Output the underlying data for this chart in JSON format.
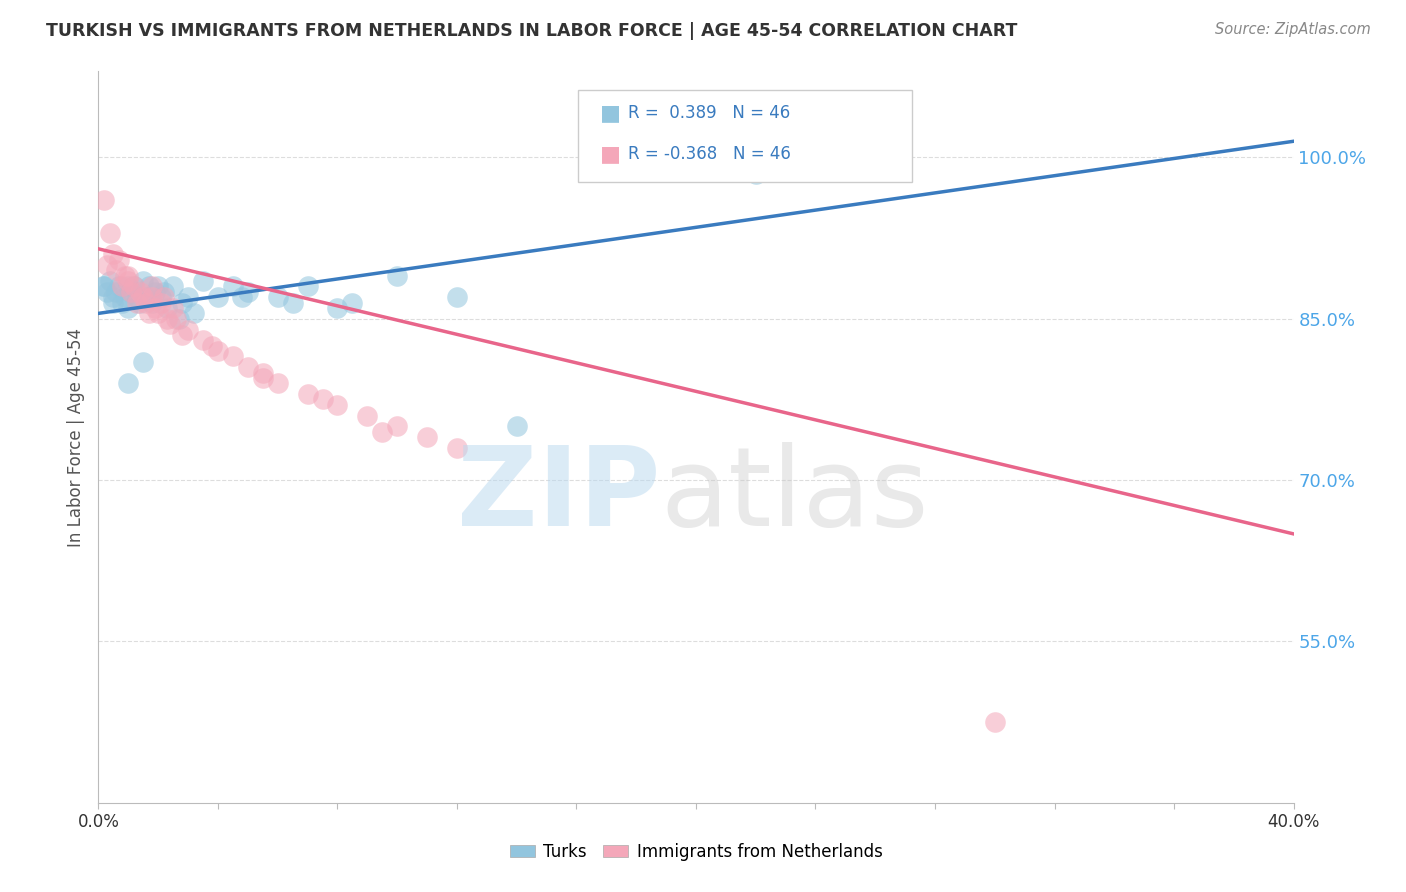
{
  "title": "TURKISH VS IMMIGRANTS FROM NETHERLANDS IN LABOR FORCE | AGE 45-54 CORRELATION CHART",
  "source": "Source: ZipAtlas.com",
  "ylabel": "In Labor Force | Age 45-54",
  "xlim": [
    0.0,
    40.0
  ],
  "ylim": [
    40.0,
    108.0
  ],
  "yticks": [
    55.0,
    70.0,
    85.0,
    100.0
  ],
  "ytick_labels": [
    "55.0%",
    "70.0%",
    "85.0%",
    "100.0%"
  ],
  "legend_r_blue": "0.389",
  "legend_r_pink": "-0.368",
  "legend_n": "46",
  "blue_color": "#92c5de",
  "pink_color": "#f4a7b9",
  "blue_line_color": "#3a7bbf",
  "pink_line_color": "#e8658a",
  "ytick_color": "#4da6e8",
  "watermark_ZIP_color": "#b8d8ef",
  "watermark_atlas_color": "#c8c8c8",
  "blue_trend_x0": 0.0,
  "blue_trend_y0": 85.5,
  "blue_trend_x1": 40.0,
  "blue_trend_y1": 101.5,
  "pink_trend_x0": 0.0,
  "pink_trend_y0": 91.5,
  "pink_trend_x1": 40.0,
  "pink_trend_y1": 65.0,
  "blue_scatter_x": [
    0.2,
    0.3,
    0.4,
    0.5,
    0.5,
    0.6,
    0.7,
    0.8,
    0.9,
    1.0,
    1.0,
    1.1,
    1.2,
    1.3,
    1.4,
    1.5,
    1.6,
    1.7,
    1.8,
    1.9,
    2.0,
    2.1,
    2.2,
    2.5,
    2.8,
    3.0,
    3.5,
    4.0,
    4.5,
    5.0,
    6.0,
    7.0,
    8.5,
    10.0,
    12.0,
    14.0,
    2.3,
    1.0,
    1.5,
    2.7,
    3.2,
    4.8,
    6.5,
    8.0,
    22.0,
    0.15
  ],
  "blue_scatter_y": [
    88.0,
    87.5,
    88.5,
    87.0,
    86.5,
    87.5,
    88.0,
    86.5,
    87.0,
    88.0,
    86.0,
    87.5,
    88.0,
    87.0,
    86.5,
    88.5,
    87.0,
    88.0,
    86.5,
    87.5,
    88.0,
    87.0,
    87.5,
    88.0,
    86.5,
    87.0,
    88.5,
    87.0,
    88.0,
    87.5,
    87.0,
    88.0,
    86.5,
    89.0,
    87.0,
    75.0,
    86.0,
    79.0,
    81.0,
    85.0,
    85.5,
    87.0,
    86.5,
    86.0,
    98.5,
    88.0
  ],
  "pink_scatter_x": [
    0.2,
    0.3,
    0.4,
    0.5,
    0.6,
    0.7,
    0.8,
    0.9,
    1.0,
    1.1,
    1.2,
    1.3,
    1.4,
    1.5,
    1.6,
    1.7,
    1.8,
    1.9,
    2.0,
    2.1,
    2.2,
    2.3,
    2.4,
    2.5,
    2.8,
    3.0,
    3.5,
    4.0,
    4.5,
    5.0,
    5.5,
    6.0,
    7.0,
    8.0,
    9.0,
    10.0,
    11.0,
    12.0,
    1.0,
    1.8,
    2.6,
    3.8,
    5.5,
    7.5,
    9.5,
    30.0
  ],
  "pink_scatter_y": [
    96.0,
    90.0,
    93.0,
    91.0,
    89.5,
    90.5,
    88.0,
    89.0,
    88.5,
    87.5,
    88.0,
    86.5,
    87.5,
    87.0,
    86.5,
    85.5,
    87.0,
    86.0,
    85.5,
    86.5,
    87.0,
    85.0,
    84.5,
    86.0,
    83.5,
    84.0,
    83.0,
    82.0,
    81.5,
    80.5,
    80.0,
    79.0,
    78.0,
    77.0,
    76.0,
    75.0,
    74.0,
    73.0,
    89.0,
    88.0,
    85.0,
    82.5,
    79.5,
    77.5,
    74.5,
    47.5
  ]
}
